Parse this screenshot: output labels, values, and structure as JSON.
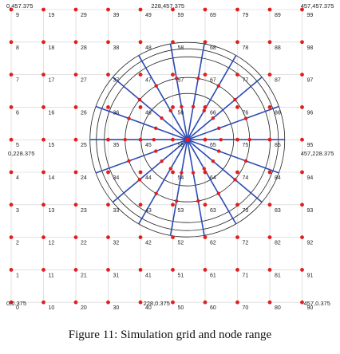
{
  "figure": {
    "caption": "Figure 11: Simulation grid and node range",
    "corner_labels": [
      {
        "text": "0,457.375",
        "corner": "top-left"
      },
      {
        "text": "228,457.375",
        "corner": "top-center"
      },
      {
        "text": "457,457.375",
        "corner": "top-right"
      },
      {
        "text": "0,228.375",
        "corner": "middle-left"
      },
      {
        "text": "457,228.375",
        "corner": "middle-right"
      },
      {
        "text": "0,0.375",
        "corner": "bottom-left"
      },
      {
        "text": "228,0.375",
        "corner": "bottom-center"
      },
      {
        "text": "457,0.375",
        "corner": "bottom-right"
      }
    ],
    "grid": {
      "columns": 10,
      "rows": 10
    },
    "node_ids_note_hidden": "",
    "colors": {
      "node": "#e01e1e",
      "grid": "#cfcfcf",
      "spoke": "#2b4bb5",
      "range_circle": "#222222"
    },
    "range_circles": 5,
    "spokes": 18,
    "node_ids": [
      [
        "9",
        "19",
        "29",
        "39",
        "49",
        "59",
        "69",
        "79",
        "89",
        "99"
      ],
      [
        "8",
        "18",
        "28",
        "38",
        "48",
        "58",
        "68",
        "78",
        "88",
        "98"
      ],
      [
        "7",
        "17",
        "27",
        "37",
        "47",
        "57",
        "67",
        "77",
        "87",
        "97"
      ],
      [
        "6",
        "16",
        "26",
        "36",
        "46",
        "56",
        "66",
        "76",
        "86",
        "96"
      ],
      [
        "5",
        "15",
        "25",
        "35",
        "45",
        "55",
        "65",
        "75",
        "85",
        "95"
      ],
      [
        "4",
        "14",
        "24",
        "34",
        "44",
        "54",
        "64",
        "74",
        "84",
        "94"
      ],
      [
        "3",
        "13",
        "23",
        "33",
        "43",
        "53",
        "63",
        "73",
        "83",
        "93"
      ],
      [
        "2",
        "12",
        "22",
        "32",
        "42",
        "52",
        "62",
        "72",
        "82",
        "92"
      ],
      [
        "1",
        "11",
        "21",
        "31",
        "41",
        "51",
        "61",
        "71",
        "81",
        "91"
      ],
      [
        "0",
        "10",
        "20",
        "30",
        "40",
        "50",
        "60",
        "70",
        "80",
        "90"
      ]
    ]
  }
}
